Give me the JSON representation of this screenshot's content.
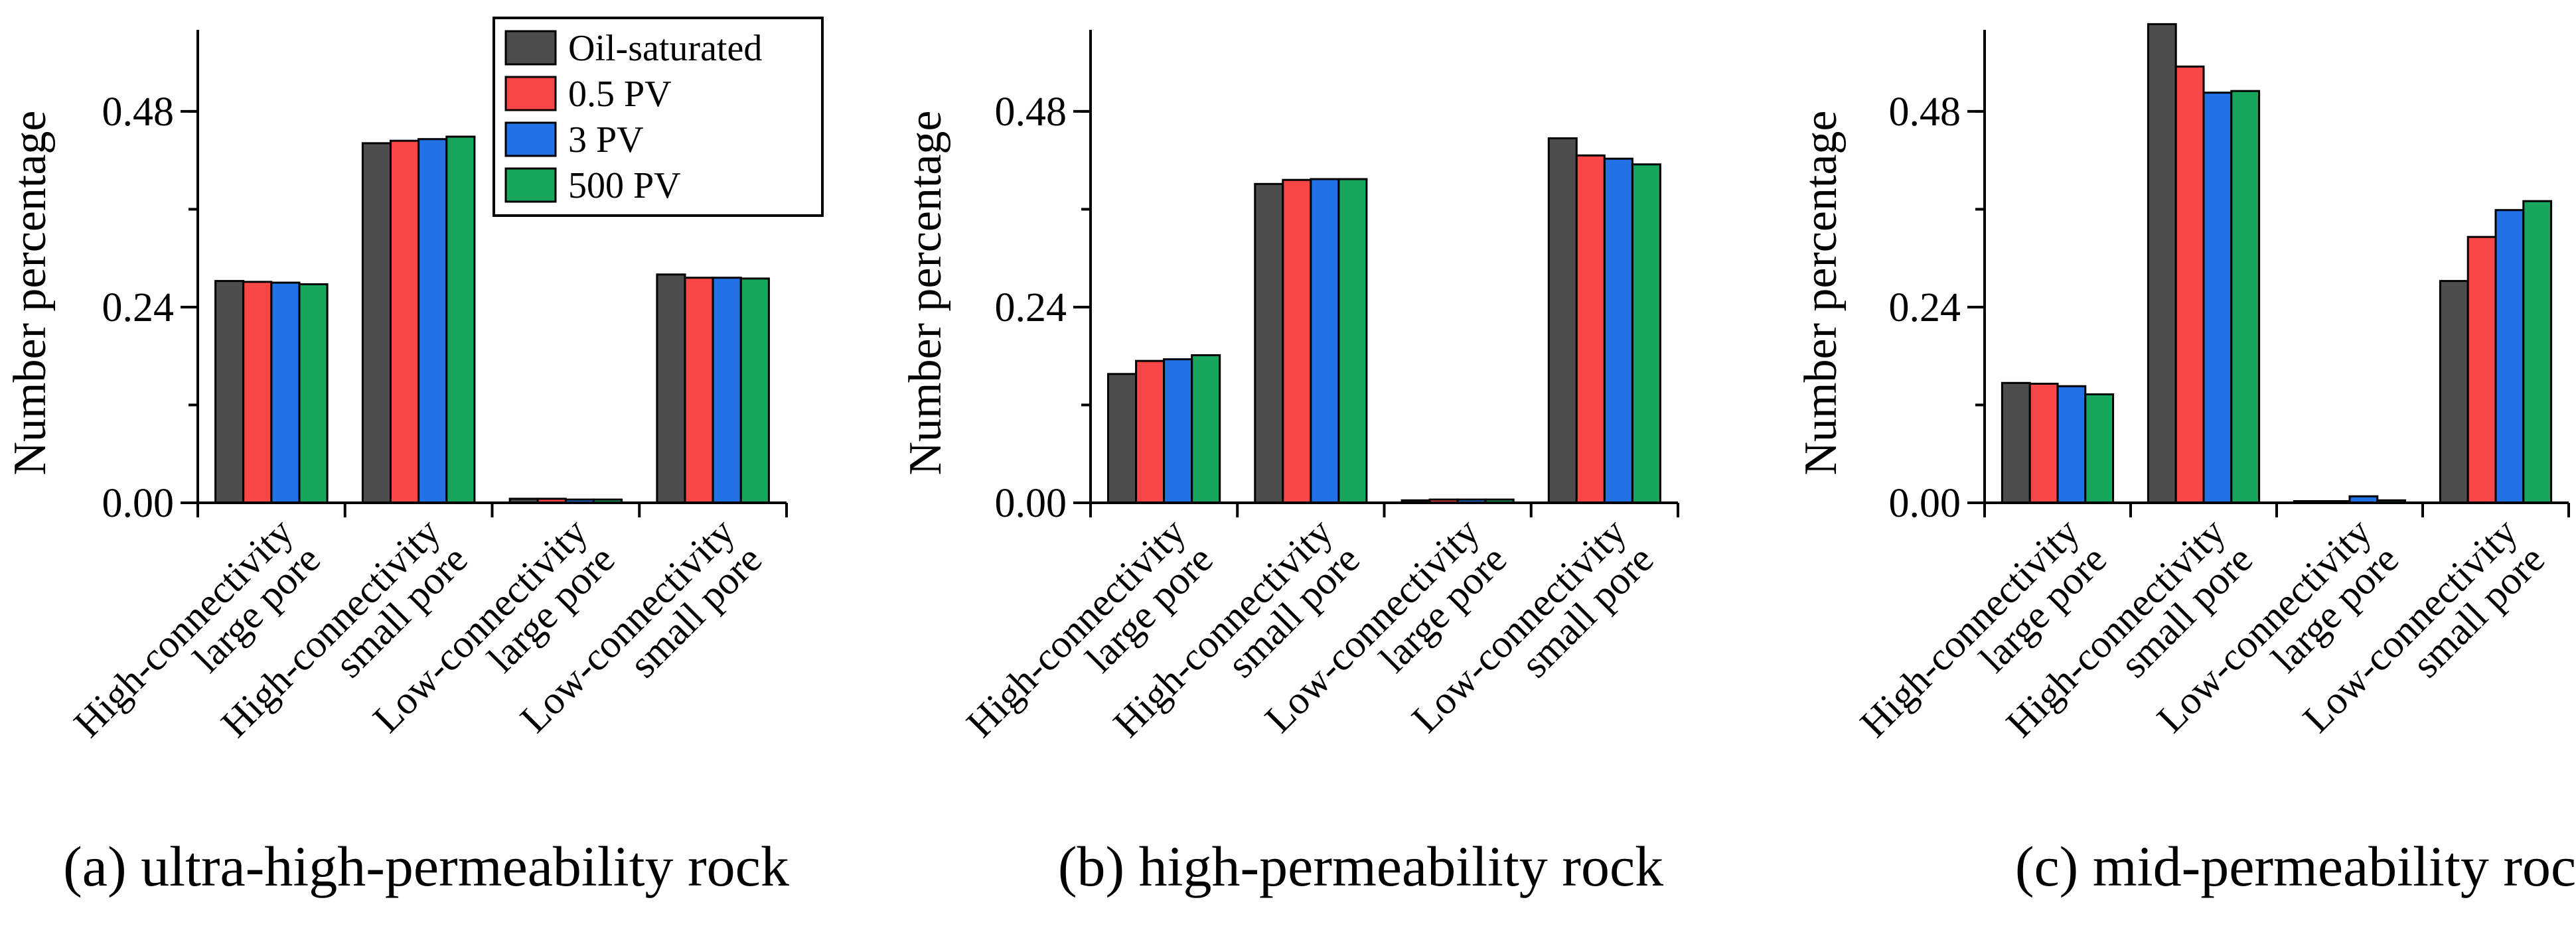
{
  "legend": {
    "items": [
      {
        "label": "Oil-saturated",
        "color": "#4d4d4d"
      },
      {
        "label": "0.5 PV",
        "color": "#f94646"
      },
      {
        "label": "3 PV",
        "color": "#2272e5"
      },
      {
        "label": "500 PV",
        "color": "#17a65b"
      }
    ]
  },
  "chart_data": [
    {
      "type": "bar",
      "caption": "(a) ultra-high-permeability rock",
      "ylabel": "Number percentage",
      "xlabel": "",
      "ylim": [
        0,
        0.58
      ],
      "yticks": [
        "0.00",
        "0.24",
        "0.48"
      ],
      "yticks_values": [
        0,
        0.24,
        0.48
      ],
      "categories": [
        [
          "High-connectivity",
          "large pore"
        ],
        [
          "High-connectivity",
          "small pore"
        ],
        [
          "Low-connectivity",
          "large pore"
        ],
        [
          "Low-connectivity",
          "small pore"
        ]
      ],
      "series": [
        {
          "name": "Oil-saturated",
          "values": [
            0.272,
            0.441,
            0.005,
            0.28
          ]
        },
        {
          "name": "0.5 PV",
          "values": [
            0.271,
            0.444,
            0.005,
            0.276
          ]
        },
        {
          "name": "3 PV",
          "values": [
            0.27,
            0.446,
            0.004,
            0.276
          ]
        },
        {
          "name": "500 PV",
          "values": [
            0.268,
            0.449,
            0.004,
            0.275
          ]
        }
      ],
      "legend_position": "top-right"
    },
    {
      "type": "bar",
      "caption": "(b) high-permeability rock",
      "ylabel": "Number percentage",
      "xlabel": "",
      "ylim": [
        0,
        0.58
      ],
      "yticks": [
        "0.00",
        "0.24",
        "0.48"
      ],
      "yticks_values": [
        0,
        0.24,
        0.48
      ],
      "categories": [
        [
          "High-connectivity",
          "large pore"
        ],
        [
          "High-connectivity",
          "small pore"
        ],
        [
          "Low-connectivity",
          "large pore"
        ],
        [
          "Low-connectivity",
          "small pore"
        ]
      ],
      "series": [
        {
          "name": "Oil-saturated",
          "values": [
            0.158,
            0.391,
            0.003,
            0.447
          ]
        },
        {
          "name": "0.5 PV",
          "values": [
            0.174,
            0.396,
            0.004,
            0.426
          ]
        },
        {
          "name": "3 PV",
          "values": [
            0.176,
            0.397,
            0.004,
            0.422
          ]
        },
        {
          "name": "500 PV",
          "values": [
            0.181,
            0.397,
            0.004,
            0.415
          ]
        }
      ]
    },
    {
      "type": "bar",
      "caption": "(c) mid-permeability rock",
      "ylabel": "Number percentage",
      "xlabel": "",
      "ylim": [
        0,
        0.58
      ],
      "yticks": [
        "0.00",
        "0.24",
        "0.48"
      ],
      "yticks_values": [
        0,
        0.24,
        0.48
      ],
      "categories": [
        [
          "High-connectivity",
          "large pore"
        ],
        [
          "High-connectivity",
          "small pore"
        ],
        [
          "Low-connectivity",
          "large pore"
        ],
        [
          "Low-connectivity",
          "small pore"
        ]
      ],
      "series": [
        {
          "name": "Oil-saturated",
          "values": [
            0.147,
            0.587,
            0.002,
            0.272
          ]
        },
        {
          "name": "0.5 PV",
          "values": [
            0.146,
            0.535,
            0.002,
            0.326
          ]
        },
        {
          "name": "3 PV",
          "values": [
            0.143,
            0.503,
            0.008,
            0.359
          ]
        },
        {
          "name": "500 PV",
          "values": [
            0.133,
            0.505,
            0.003,
            0.37
          ]
        }
      ]
    }
  ]
}
